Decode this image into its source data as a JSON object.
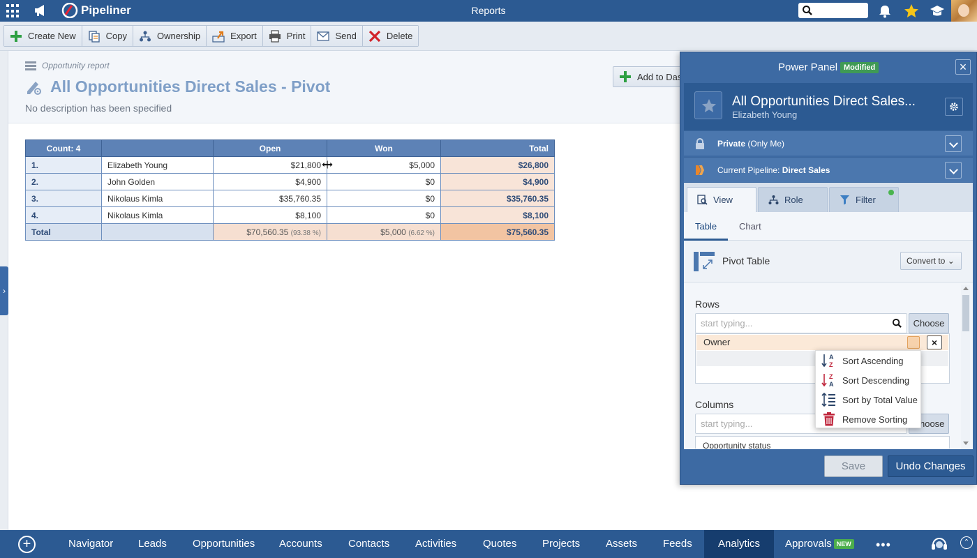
{
  "app": {
    "title": "Reports",
    "logo_text": "Pipeliner"
  },
  "toolbar": {
    "create_new": "Create New",
    "copy": "Copy",
    "ownership": "Ownership",
    "export": "Export",
    "print": "Print",
    "send": "Send",
    "delete": "Delete"
  },
  "report": {
    "type": "Opportunity report",
    "title": "All Opportunities Direct Sales - Pivot",
    "description": "No description has been specified",
    "add_to_dashboard": "Add to Dash"
  },
  "pivot": {
    "headers": [
      "Count: 4",
      "",
      "Open",
      "Won",
      "Total"
    ],
    "rows": [
      {
        "idx": "1.",
        "name": "Elizabeth Young",
        "open": "$21,800",
        "won": "$5,000",
        "total": "$26,800"
      },
      {
        "idx": "2.",
        "name": "John Golden",
        "open": "$4,900",
        "won": "$0",
        "total": "$4,900"
      },
      {
        "idx": "3.",
        "name": "Nikolaus Kimla",
        "open": "$35,760.35",
        "won": "$0",
        "total": "$35,760.35"
      },
      {
        "idx": "4.",
        "name": "Nikolaus Kimla",
        "open": "$8,100",
        "won": "$0",
        "total": "$8,100"
      }
    ],
    "total": {
      "label": "Total",
      "open": "$70,560.35",
      "open_pct": "(93.38 %)",
      "won": "$5,000",
      "won_pct": "(6.62 %)",
      "total": "$75,560.35"
    }
  },
  "power_panel": {
    "title": "Power Panel",
    "badge": "Modified",
    "record_name": "All Opportunities Direct Sales...",
    "record_owner": "Elizabeth Young",
    "privacy_bold": "Private",
    "privacy_rest": " (Only Me)",
    "pipeline_label": "Current Pipeline: ",
    "pipeline_value": "Direct Sales",
    "tabs": {
      "view": "View",
      "role": "Role",
      "filter": "Filter"
    },
    "subtabs": {
      "table": "Table",
      "chart": "Chart"
    },
    "pivot_type": "Pivot Table",
    "convert_to": "Convert to",
    "rows_label": "Rows",
    "rows_placeholder": "start typing...",
    "choose": "Choose",
    "row_chip": "Owner",
    "columns_label": "Columns",
    "columns_placeholder": "start typing...",
    "columns_choose": "Choose",
    "column_chip": "Opportunity status",
    "save": "Save",
    "undo": "Undo Changes"
  },
  "sort_menu": {
    "ascending": "Sort Ascending",
    "descending": "Sort Descending",
    "by_total": "Sort by Total Value",
    "remove": "Remove Sorting"
  },
  "bottom_nav": {
    "items": [
      "Navigator",
      "Leads",
      "Opportunities",
      "Accounts",
      "Contacts",
      "Activities",
      "Quotes",
      "Projects",
      "Assets",
      "Feeds",
      "Analytics",
      "Approvals"
    ],
    "new_badge": "NEW",
    "more": "•••"
  },
  "colors": {
    "brand": "#2c5a92",
    "header_cell": "#5d82b6",
    "total_cell": "#f8e4d8",
    "modified_badge": "#3f9a55"
  }
}
